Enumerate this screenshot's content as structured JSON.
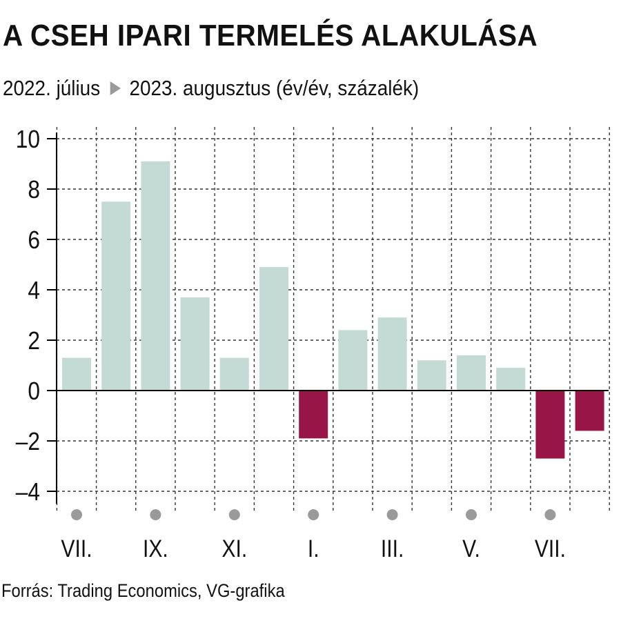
{
  "title": "A CSEH IPARI TERMELÉS ALAKULÁSA",
  "subtitle": {
    "start": "2022. július",
    "end": "2023. augusztus (év/év, százalék)",
    "arrow_icon": "right-triangle-icon"
  },
  "source": "Forrás: Trading Economics, VG-grafika",
  "colors": {
    "positive_bar": "#c3dbd4",
    "negative_bar": "#981547",
    "grid": "#333333",
    "marker": "#9a9a9a",
    "zero_line": "#000000"
  },
  "chart_data": {
    "type": "bar",
    "ylim": [
      -4.8,
      10
    ],
    "yticks": [
      10,
      8,
      6,
      4,
      2,
      0,
      -2,
      -4
    ],
    "ytick_labels": [
      "10",
      "8",
      "6",
      "4",
      "2",
      "0",
      "–2",
      "–4"
    ],
    "grid": true,
    "categories": [
      "2022-07",
      "2022-08",
      "2022-09",
      "2022-10",
      "2022-11",
      "2022-12",
      "2023-01",
      "2023-02",
      "2023-03",
      "2023-04",
      "2023-05",
      "2023-06",
      "2023-07",
      "2023-08"
    ],
    "values": [
      1.3,
      7.5,
      9.1,
      3.7,
      1.3,
      4.9,
      -1.9,
      2.4,
      2.9,
      1.2,
      1.4,
      0.9,
      -2.7,
      -1.6
    ],
    "xtick_labels": [
      "VII.",
      "",
      "IX.",
      "",
      "XI.",
      "",
      "I.",
      "",
      "III.",
      "",
      "V.",
      "",
      "VII.",
      ""
    ],
    "xlabel": "",
    "ylabel": ""
  }
}
